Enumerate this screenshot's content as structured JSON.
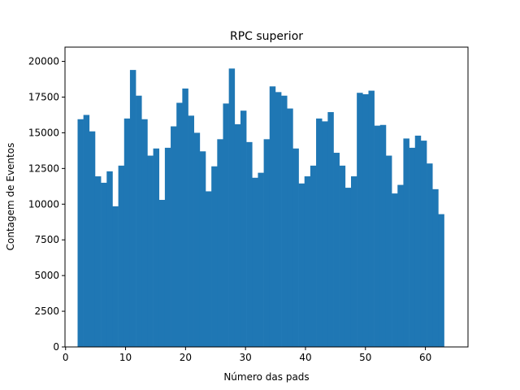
{
  "chart_data": {
    "type": "bar",
    "title": "RPC superior",
    "xlabel": "Número das pads",
    "ylabel": "Contagem de Eventos",
    "xlim": [
      -0.1,
      67.1
    ],
    "ylim": [
      0,
      21000
    ],
    "xticks": [
      0,
      10,
      20,
      30,
      40,
      50,
      60
    ],
    "yticks": [
      0,
      2500,
      5000,
      7500,
      10000,
      12500,
      15000,
      17500,
      20000
    ],
    "bar_color": "#1f77b4",
    "bin_start": 2,
    "bin_width": 0.97,
    "grid": false,
    "values": [
      15950,
      16250,
      15100,
      11950,
      11500,
      12300,
      9850,
      12700,
      16000,
      19400,
      17600,
      15950,
      13400,
      13900,
      10300,
      13950,
      15450,
      17100,
      18100,
      16200,
      15000,
      13700,
      10900,
      12650,
      14550,
      17050,
      19500,
      15600,
      16550,
      14350,
      11850,
      12200,
      14550,
      18250,
      17850,
      17600,
      16700,
      13900,
      11450,
      11950,
      12700,
      16000,
      15800,
      16450,
      13600,
      12700,
      11150,
      11950,
      17800,
      17700,
      17950,
      15500,
      15550,
      13400,
      10750,
      11350,
      14600,
      13950,
      14800,
      14450,
      12850,
      11050,
      9300
    ]
  }
}
